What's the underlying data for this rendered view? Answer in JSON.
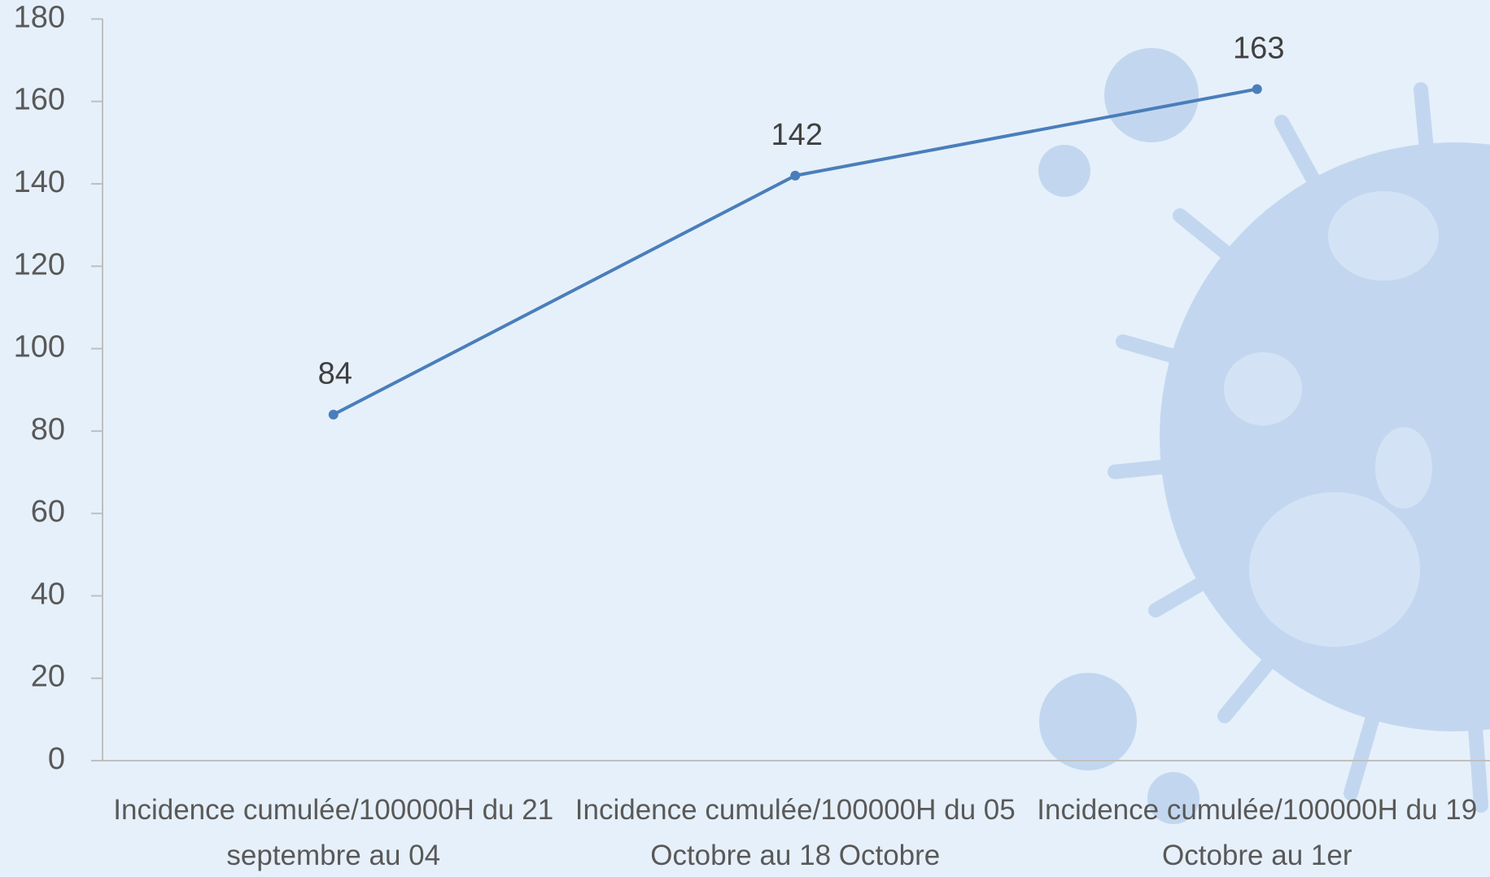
{
  "chart_data": {
    "type": "line",
    "categories": [
      "Incidence cumulée/100000H du 21 septembre au 04",
      "Incidence cumulée/100000H du 05 Octobre au 18 Octobre",
      "Incidence cumulée/100000H du 19 Octobre au 1er"
    ],
    "series": [
      {
        "color": "#4a7ebb",
        "values": [
          84,
          142,
          163
        ]
      }
    ],
    "ylim": [
      0,
      180
    ],
    "yticks": [
      0,
      20,
      40,
      60,
      80,
      100,
      120,
      140,
      160,
      180
    ],
    "grid": false
  }
}
